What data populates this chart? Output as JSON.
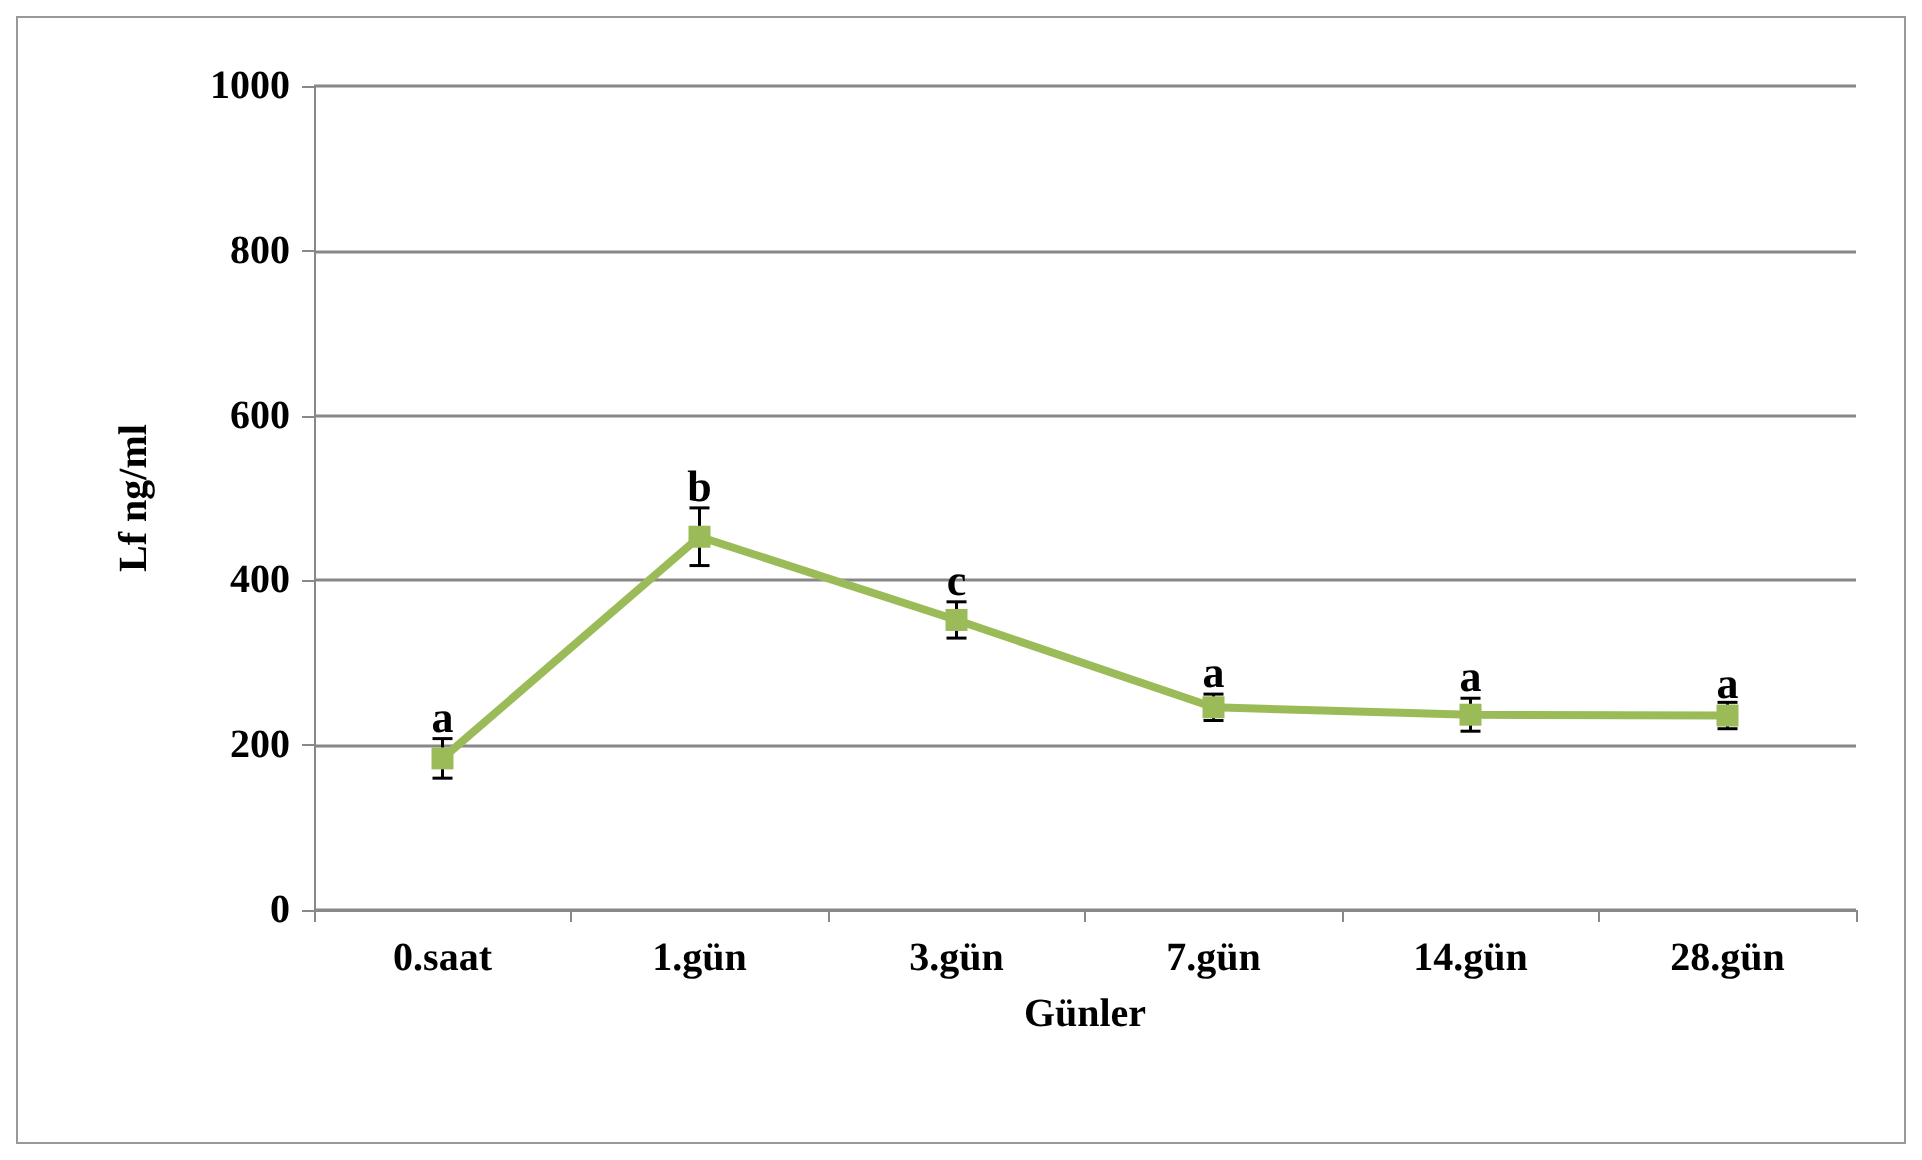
{
  "chart_data": {
    "type": "line",
    "xlabel": "Günler",
    "ylabel": "Lf ng/ml",
    "categories": [
      "0.saat",
      "1.gün",
      "3.gün",
      "7.gün",
      "14.gün",
      "28.gün"
    ],
    "series": [
      {
        "color": "#9bbb59",
        "values": [
          184,
          453,
          352,
          246,
          237,
          236
        ],
        "errors": [
          24,
          35,
          22,
          16,
          20,
          16
        ]
      }
    ],
    "annotations": [
      {
        "text": "a",
        "x": "0.saat",
        "y": 208
      },
      {
        "text": "b",
        "x": "1.gün",
        "y": 488
      },
      {
        "text": "c",
        "x": "3.gün",
        "y": 374
      },
      {
        "text": "a",
        "x": "7.gün",
        "y": 262
      },
      {
        "text": "a",
        "x": "14.gün",
        "y": 257
      },
      {
        "text": "a",
        "x": "28.gün",
        "y": 249
      }
    ],
    "ylim": [
      0,
      1000
    ],
    "yticks": [
      0,
      200,
      400,
      600,
      800,
      1000
    ],
    "grid": "y",
    "marker": "square",
    "line_style": "solid"
  }
}
